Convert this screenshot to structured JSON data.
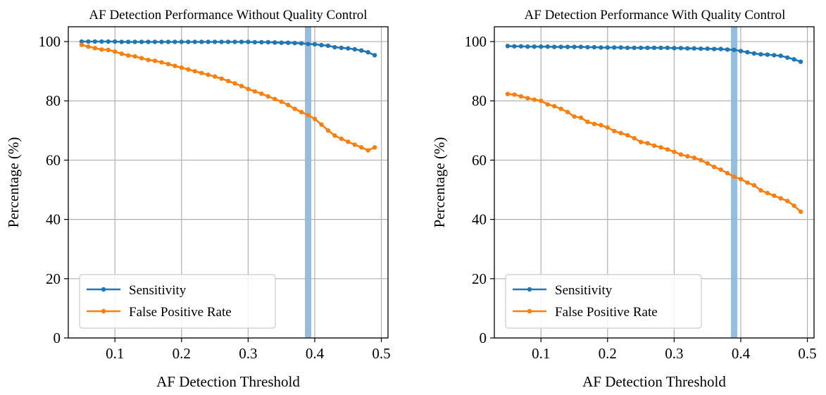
{
  "chart_data": [
    {
      "type": "line",
      "title": "AF Detection Performance Without Quality Control",
      "xlabel": "AF Detection Threshold",
      "ylabel": "Percentage (%)",
      "xlim": [
        0.03,
        0.51
      ],
      "ylim": [
        0,
        105
      ],
      "xticks": [
        "0.1",
        "0.2",
        "0.3",
        "0.4",
        "0.5"
      ],
      "yticks": [
        "0",
        "20",
        "40",
        "60",
        "80",
        "100"
      ],
      "grid": true,
      "legend_position": "lower-left",
      "threshold_line": 0.39,
      "threshold_color": "#8fbbdc",
      "series": [
        {
          "name": "Sensitivity",
          "color": "#1f77b4",
          "x": [
            0.05,
            0.06,
            0.07,
            0.08,
            0.09,
            0.1,
            0.11,
            0.12,
            0.13,
            0.14,
            0.15,
            0.16,
            0.17,
            0.18,
            0.19,
            0.2,
            0.21,
            0.22,
            0.23,
            0.24,
            0.25,
            0.26,
            0.27,
            0.28,
            0.29,
            0.3,
            0.31,
            0.32,
            0.33,
            0.34,
            0.35,
            0.36,
            0.37,
            0.38,
            0.39,
            0.4,
            0.41,
            0.42,
            0.43,
            0.44,
            0.45,
            0.46,
            0.47,
            0.48,
            0.49
          ],
          "values": [
            100.0,
            100.0,
            100.0,
            100.0,
            100.0,
            100.0,
            99.9,
            99.9,
            99.9,
            99.9,
            99.9,
            99.9,
            99.9,
            99.9,
            99.9,
            99.9,
            99.9,
            99.9,
            99.9,
            99.9,
            99.9,
            99.9,
            99.9,
            99.9,
            99.9,
            99.9,
            99.8,
            99.8,
            99.8,
            99.7,
            99.6,
            99.6,
            99.5,
            99.4,
            99.2,
            99.1,
            98.8,
            98.6,
            98.1,
            97.9,
            97.7,
            97.4,
            97.0,
            96.4,
            95.4
          ]
        },
        {
          "name": "False Positive Rate",
          "color": "#ff7f0e",
          "x": [
            0.05,
            0.06,
            0.07,
            0.08,
            0.09,
            0.1,
            0.11,
            0.12,
            0.13,
            0.14,
            0.15,
            0.16,
            0.17,
            0.18,
            0.19,
            0.2,
            0.21,
            0.22,
            0.23,
            0.24,
            0.25,
            0.26,
            0.27,
            0.28,
            0.29,
            0.3,
            0.31,
            0.32,
            0.33,
            0.34,
            0.35,
            0.36,
            0.37,
            0.38,
            0.39,
            0.4,
            0.41,
            0.42,
            0.43,
            0.44,
            0.45,
            0.46,
            0.47,
            0.48,
            0.49
          ],
          "values": [
            98.9,
            98.3,
            97.8,
            97.3,
            97.2,
            96.6,
            95.9,
            95.3,
            95.0,
            94.4,
            93.8,
            93.5,
            93.0,
            92.4,
            91.8,
            91.2,
            90.6,
            90.0,
            89.4,
            88.8,
            88.2,
            87.5,
            86.7,
            85.9,
            85.0,
            84.0,
            83.2,
            82.4,
            81.5,
            80.6,
            79.7,
            78.6,
            77.3,
            76.2,
            75.2,
            73.9,
            72.0,
            70.0,
            68.3,
            67.2,
            66.2,
            65.2,
            64.3,
            63.3,
            64.3
          ]
        }
      ]
    },
    {
      "type": "line",
      "title": "AF Detection Performance With Quality Control",
      "xlabel": "AF Detection Threshold",
      "ylabel": "Percentage (%)",
      "xlim": [
        0.03,
        0.51
      ],
      "ylim": [
        0,
        105
      ],
      "xticks": [
        "0.1",
        "0.2",
        "0.3",
        "0.4",
        "0.5"
      ],
      "yticks": [
        "0",
        "20",
        "40",
        "60",
        "80",
        "100"
      ],
      "grid": true,
      "legend_position": "lower-left",
      "threshold_line": 0.39,
      "threshold_color": "#8fbbdc",
      "series": [
        {
          "name": "Sensitivity",
          "color": "#1f77b4",
          "x": [
            0.05,
            0.06,
            0.07,
            0.08,
            0.09,
            0.1,
            0.11,
            0.12,
            0.13,
            0.14,
            0.15,
            0.16,
            0.17,
            0.18,
            0.19,
            0.2,
            0.21,
            0.22,
            0.23,
            0.24,
            0.25,
            0.26,
            0.27,
            0.28,
            0.29,
            0.3,
            0.31,
            0.32,
            0.33,
            0.34,
            0.35,
            0.36,
            0.37,
            0.38,
            0.39,
            0.4,
            0.41,
            0.42,
            0.43,
            0.44,
            0.45,
            0.46,
            0.47,
            0.48,
            0.49
          ],
          "values": [
            98.5,
            98.4,
            98.4,
            98.3,
            98.3,
            98.3,
            98.3,
            98.2,
            98.2,
            98.2,
            98.2,
            98.2,
            98.1,
            98.1,
            98.0,
            98.0,
            98.0,
            98.0,
            97.9,
            97.9,
            97.9,
            97.9,
            97.9,
            97.9,
            97.9,
            97.8,
            97.8,
            97.7,
            97.7,
            97.6,
            97.6,
            97.5,
            97.5,
            97.3,
            97.2,
            96.8,
            96.4,
            96.0,
            95.7,
            95.6,
            95.4,
            95.2,
            94.6,
            94.0,
            93.2
          ]
        },
        {
          "name": "False Positive Rate",
          "color": "#ff7f0e",
          "x": [
            0.05,
            0.06,
            0.07,
            0.08,
            0.09,
            0.1,
            0.11,
            0.12,
            0.13,
            0.14,
            0.15,
            0.16,
            0.17,
            0.18,
            0.19,
            0.2,
            0.21,
            0.22,
            0.23,
            0.24,
            0.25,
            0.26,
            0.27,
            0.28,
            0.29,
            0.3,
            0.31,
            0.32,
            0.33,
            0.34,
            0.35,
            0.36,
            0.37,
            0.38,
            0.39,
            0.4,
            0.41,
            0.42,
            0.43,
            0.44,
            0.45,
            0.46,
            0.47,
            0.48,
            0.49
          ],
          "values": [
            82.3,
            82.1,
            81.5,
            80.9,
            80.4,
            80.0,
            78.8,
            78.2,
            77.3,
            76.2,
            74.7,
            74.3,
            72.9,
            72.2,
            71.8,
            71.0,
            69.8,
            69.1,
            68.4,
            67.4,
            66.1,
            65.7,
            64.9,
            64.3,
            63.6,
            62.8,
            61.9,
            61.3,
            60.8,
            60.0,
            58.9,
            57.7,
            56.8,
            55.6,
            54.4,
            53.6,
            52.4,
            51.5,
            49.8,
            48.9,
            48.0,
            47.1,
            46.2,
            44.6,
            42.6
          ]
        }
      ]
    }
  ]
}
